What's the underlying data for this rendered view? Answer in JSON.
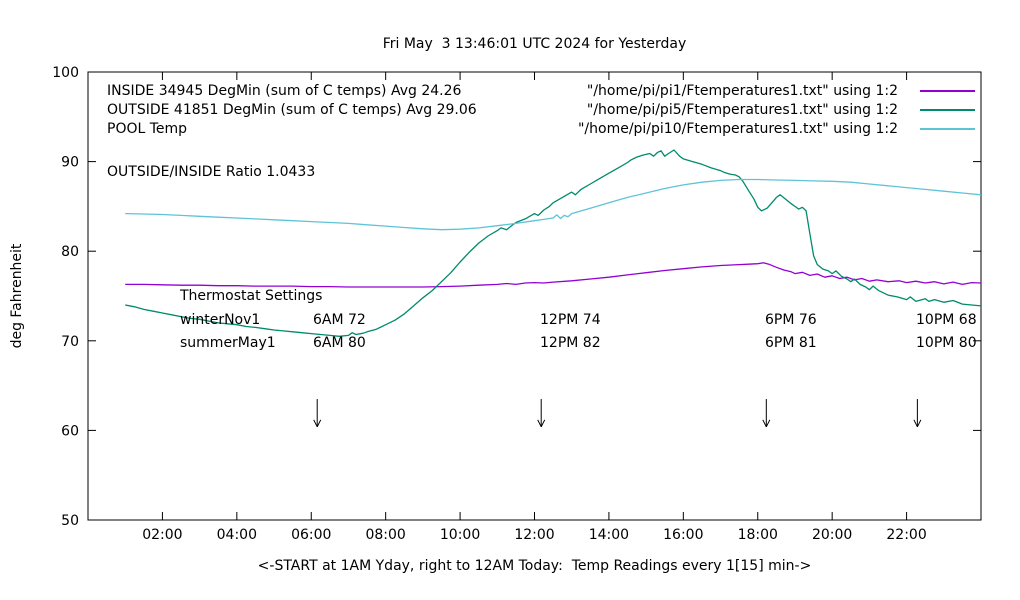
{
  "ratio_label": "OUTSIDE/INSIDE Ratio 1.0433",
  "legend": [
    {
      "label": "INSIDE 34945 DegMin (sum of C temps) Avg 24.26",
      "file": "\"/home/pi/pi1/Ftemperatures1.txt\" using 1:2",
      "color": "#9400D3"
    },
    {
      "label": "OUTSIDE 41851 DegMin (sum of C temps) Avg 29.06",
      "file": "\"/home/pi/pi5/Ftemperatures1.txt\" using 1:2",
      "color": "#008B6A"
    },
    {
      "label": "POOL Temp",
      "file": "\"/home/pi/pi10/Ftemperatures1.txt\" using 1:2",
      "color": "#5FC3D8"
    }
  ],
  "thermostat": {
    "heading": "Thermostat Settings",
    "rows": [
      {
        "name": "winterNov1",
        "cols": [
          "6AM 72",
          "12PM 74",
          "6PM 76",
          "10PM 68"
        ]
      },
      {
        "name": "summerMay1",
        "cols": [
          "6AM 80",
          "12PM 82",
          "6PM 81",
          "10PM 80"
        ]
      }
    ]
  },
  "chart_data": {
    "type": "line",
    "title": "Fri May  3 13:46:01 UTC 2024 for Yesterday",
    "xlabel": "<-START at 1AM Yday, right to 12AM Today:  Temp Readings every 1[15] min->",
    "ylabel": "deg Fahrenheit",
    "xlim": [
      0,
      24
    ],
    "ylim": [
      50,
      100
    ],
    "grid": false,
    "legend_position": "top-left-inside",
    "x_ticks": [
      {
        "v": 2,
        "label": "02:00"
      },
      {
        "v": 4,
        "label": "04:00"
      },
      {
        "v": 6,
        "label": "06:00"
      },
      {
        "v": 8,
        "label": "08:00"
      },
      {
        "v": 10,
        "label": "10:00"
      },
      {
        "v": 12,
        "label": "12:00"
      },
      {
        "v": 14,
        "label": "14:00"
      },
      {
        "v": 16,
        "label": "16:00"
      },
      {
        "v": 18,
        "label": "18:00"
      },
      {
        "v": 20,
        "label": "20:00"
      },
      {
        "v": 22,
        "label": "22:00"
      }
    ],
    "y_ticks": [
      50,
      60,
      70,
      80,
      90,
      100
    ],
    "arrows": {
      "x_hours": [
        6.16,
        12.18,
        18.23,
        22.29
      ],
      "y_top": 63.5,
      "y_tip": 60.4
    },
    "series": [
      {
        "name": "INSIDE",
        "color": "#9400D3",
        "points": [
          [
            1,
            76.3
          ],
          [
            1.5,
            76.3
          ],
          [
            2,
            76.25
          ],
          [
            2.5,
            76.2
          ],
          [
            3,
            76.2
          ],
          [
            3.5,
            76.15
          ],
          [
            4,
            76.15
          ],
          [
            4.5,
            76.1
          ],
          [
            5,
            76.1
          ],
          [
            5.5,
            76.1
          ],
          [
            6,
            76.05
          ],
          [
            6.5,
            76.05
          ],
          [
            7,
            76.0
          ],
          [
            7.5,
            76.0
          ],
          [
            8,
            76.0
          ],
          [
            8.5,
            76.0
          ],
          [
            9,
            76.0
          ],
          [
            9.5,
            76.05
          ],
          [
            10,
            76.1
          ],
          [
            10.5,
            76.2
          ],
          [
            11,
            76.3
          ],
          [
            11.25,
            76.4
          ],
          [
            11.5,
            76.3
          ],
          [
            11.75,
            76.45
          ],
          [
            12,
            76.5
          ],
          [
            12.25,
            76.45
          ],
          [
            12.5,
            76.55
          ],
          [
            13,
            76.7
          ],
          [
            13.5,
            76.9
          ],
          [
            14,
            77.1
          ],
          [
            14.5,
            77.35
          ],
          [
            15,
            77.6
          ],
          [
            15.5,
            77.85
          ],
          [
            16,
            78.05
          ],
          [
            16.5,
            78.25
          ],
          [
            17,
            78.4
          ],
          [
            17.5,
            78.5
          ],
          [
            17.75,
            78.55
          ],
          [
            18,
            78.6
          ],
          [
            18.15,
            78.7
          ],
          [
            18.3,
            78.55
          ],
          [
            18.5,
            78.2
          ],
          [
            18.7,
            77.9
          ],
          [
            18.9,
            77.7
          ],
          [
            19,
            77.5
          ],
          [
            19.2,
            77.65
          ],
          [
            19.4,
            77.3
          ],
          [
            19.6,
            77.45
          ],
          [
            19.8,
            77.1
          ],
          [
            20,
            77.25
          ],
          [
            20.2,
            76.95
          ],
          [
            20.4,
            77.1
          ],
          [
            20.6,
            76.8
          ],
          [
            20.8,
            76.95
          ],
          [
            21,
            76.65
          ],
          [
            21.2,
            76.8
          ],
          [
            21.5,
            76.6
          ],
          [
            21.8,
            76.7
          ],
          [
            22,
            76.5
          ],
          [
            22.25,
            76.65
          ],
          [
            22.5,
            76.45
          ],
          [
            22.75,
            76.6
          ],
          [
            23,
            76.35
          ],
          [
            23.25,
            76.55
          ],
          [
            23.5,
            76.3
          ],
          [
            23.75,
            76.5
          ],
          [
            24,
            76.45
          ]
        ]
      },
      {
        "name": "OUTSIDE",
        "color": "#008B6A",
        "points": [
          [
            1,
            74.0
          ],
          [
            1.25,
            73.8
          ],
          [
            1.5,
            73.5
          ],
          [
            1.75,
            73.3
          ],
          [
            2,
            73.1
          ],
          [
            2.25,
            72.9
          ],
          [
            2.5,
            72.7
          ],
          [
            2.75,
            72.5
          ],
          [
            3,
            72.4
          ],
          [
            3.25,
            72.2
          ],
          [
            3.5,
            72.0
          ],
          [
            3.75,
            71.9
          ],
          [
            4,
            71.8
          ],
          [
            4.25,
            71.6
          ],
          [
            4.5,
            71.5
          ],
          [
            4.75,
            71.35
          ],
          [
            5,
            71.2
          ],
          [
            5.25,
            71.1
          ],
          [
            5.5,
            71.0
          ],
          [
            5.75,
            70.9
          ],
          [
            6,
            70.8
          ],
          [
            6.25,
            70.7
          ],
          [
            6.5,
            70.6
          ],
          [
            6.75,
            70.5
          ],
          [
            7,
            70.6
          ],
          [
            7.1,
            70.9
          ],
          [
            7.2,
            70.7
          ],
          [
            7.4,
            70.85
          ],
          [
            7.5,
            71.0
          ],
          [
            7.75,
            71.3
          ],
          [
            8,
            71.8
          ],
          [
            8.25,
            72.3
          ],
          [
            8.5,
            73.0
          ],
          [
            8.75,
            73.9
          ],
          [
            9,
            74.8
          ],
          [
            9.25,
            75.6
          ],
          [
            9.5,
            76.6
          ],
          [
            9.75,
            77.6
          ],
          [
            10,
            78.8
          ],
          [
            10.25,
            79.9
          ],
          [
            10.5,
            80.9
          ],
          [
            10.75,
            81.7
          ],
          [
            11,
            82.3
          ],
          [
            11.1,
            82.6
          ],
          [
            11.25,
            82.4
          ],
          [
            11.4,
            82.9
          ],
          [
            11.5,
            83.2
          ],
          [
            11.75,
            83.6
          ],
          [
            12,
            84.2
          ],
          [
            12.1,
            84.0
          ],
          [
            12.25,
            84.6
          ],
          [
            12.4,
            85.0
          ],
          [
            12.5,
            85.4
          ],
          [
            12.75,
            86.0
          ],
          [
            13,
            86.6
          ],
          [
            13.1,
            86.3
          ],
          [
            13.25,
            86.9
          ],
          [
            13.5,
            87.5
          ],
          [
            13.75,
            88.1
          ],
          [
            14,
            88.7
          ],
          [
            14.25,
            89.3
          ],
          [
            14.5,
            89.9
          ],
          [
            14.6,
            90.2
          ],
          [
            14.75,
            90.5
          ],
          [
            14.9,
            90.7
          ],
          [
            15,
            90.8
          ],
          [
            15.1,
            90.9
          ],
          [
            15.2,
            90.6
          ],
          [
            15.3,
            91.0
          ],
          [
            15.4,
            91.2
          ],
          [
            15.5,
            90.6
          ],
          [
            15.6,
            90.9
          ],
          [
            15.75,
            91.3
          ],
          [
            15.9,
            90.6
          ],
          [
            16,
            90.3
          ],
          [
            16.25,
            90.0
          ],
          [
            16.5,
            89.7
          ],
          [
            16.75,
            89.3
          ],
          [
            17,
            89.0
          ],
          [
            17.1,
            88.8
          ],
          [
            17.25,
            88.6
          ],
          [
            17.4,
            88.5
          ],
          [
            17.5,
            88.3
          ],
          [
            17.6,
            87.8
          ],
          [
            17.75,
            86.8
          ],
          [
            17.9,
            85.8
          ],
          [
            18,
            84.9
          ],
          [
            18.1,
            84.5
          ],
          [
            18.25,
            84.8
          ],
          [
            18.4,
            85.5
          ],
          [
            18.5,
            86.0
          ],
          [
            18.6,
            86.3
          ],
          [
            18.75,
            85.8
          ],
          [
            18.9,
            85.3
          ],
          [
            19,
            85.0
          ],
          [
            19.1,
            84.7
          ],
          [
            19.2,
            84.9
          ],
          [
            19.3,
            84.5
          ],
          [
            19.4,
            82.0
          ],
          [
            19.5,
            79.5
          ],
          [
            19.6,
            78.5
          ],
          [
            19.75,
            78.0
          ],
          [
            19.9,
            77.8
          ],
          [
            20,
            77.5
          ],
          [
            20.1,
            77.8
          ],
          [
            20.25,
            77.2
          ],
          [
            20.4,
            76.9
          ],
          [
            20.5,
            76.6
          ],
          [
            20.6,
            76.9
          ],
          [
            20.75,
            76.3
          ],
          [
            20.9,
            76.0
          ],
          [
            21,
            75.7
          ],
          [
            21.1,
            76.1
          ],
          [
            21.25,
            75.6
          ],
          [
            21.4,
            75.3
          ],
          [
            21.5,
            75.1
          ],
          [
            21.75,
            74.9
          ],
          [
            22,
            74.6
          ],
          [
            22.1,
            74.9
          ],
          [
            22.25,
            74.4
          ],
          [
            22.5,
            74.7
          ],
          [
            22.6,
            74.4
          ],
          [
            22.75,
            74.6
          ],
          [
            23,
            74.3
          ],
          [
            23.25,
            74.5
          ],
          [
            23.5,
            74.1
          ],
          [
            23.75,
            74.0
          ],
          [
            24,
            73.9
          ]
        ]
      },
      {
        "name": "POOL",
        "color": "#5FC3D8",
        "points": [
          [
            1,
            84.2
          ],
          [
            1.5,
            84.15
          ],
          [
            2,
            84.1
          ],
          [
            2.5,
            84.0
          ],
          [
            3,
            83.9
          ],
          [
            3.5,
            83.8
          ],
          [
            4,
            83.7
          ],
          [
            4.5,
            83.6
          ],
          [
            5,
            83.5
          ],
          [
            5.5,
            83.4
          ],
          [
            6,
            83.3
          ],
          [
            6.5,
            83.2
          ],
          [
            7,
            83.1
          ],
          [
            7.5,
            82.95
          ],
          [
            8,
            82.8
          ],
          [
            8.5,
            82.65
          ],
          [
            9,
            82.5
          ],
          [
            9.5,
            82.4
          ],
          [
            10,
            82.45
          ],
          [
            10.5,
            82.6
          ],
          [
            11,
            82.85
          ],
          [
            11.5,
            83.1
          ],
          [
            12,
            83.4
          ],
          [
            12.25,
            83.55
          ],
          [
            12.5,
            83.7
          ],
          [
            12.6,
            84.05
          ],
          [
            12.7,
            83.65
          ],
          [
            12.8,
            84.0
          ],
          [
            12.9,
            83.85
          ],
          [
            13,
            84.2
          ],
          [
            13.5,
            84.8
          ],
          [
            14,
            85.4
          ],
          [
            14.5,
            86.0
          ],
          [
            15,
            86.5
          ],
          [
            15.5,
            87.0
          ],
          [
            16,
            87.4
          ],
          [
            16.5,
            87.7
          ],
          [
            17,
            87.9
          ],
          [
            17.5,
            88.0
          ],
          [
            18,
            88.0
          ],
          [
            18.5,
            87.95
          ],
          [
            19,
            87.9
          ],
          [
            19.5,
            87.85
          ],
          [
            20,
            87.8
          ],
          [
            20.5,
            87.7
          ],
          [
            21,
            87.5
          ],
          [
            21.5,
            87.3
          ],
          [
            22,
            87.1
          ],
          [
            22.5,
            86.9
          ],
          [
            23,
            86.7
          ],
          [
            23.5,
            86.5
          ],
          [
            24,
            86.3
          ]
        ]
      }
    ]
  }
}
